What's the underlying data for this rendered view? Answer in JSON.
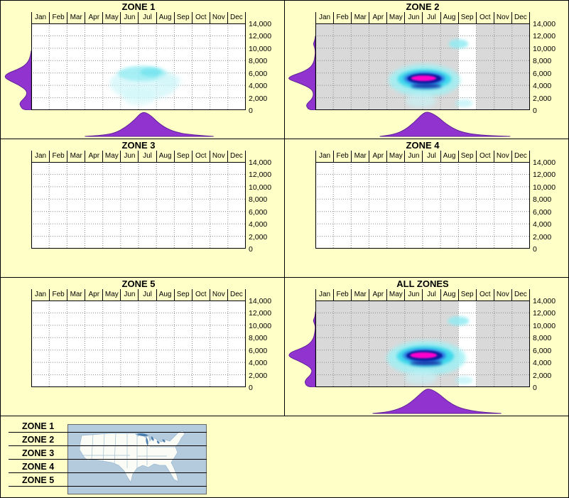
{
  "page": {
    "background": "#FFFFC8",
    "description": "Elevation vs month observation-density plots for five zones plus all zones combined, with a US zone map legend"
  },
  "axes": {
    "months": [
      "Jan",
      "Feb",
      "Mar",
      "Apr",
      "May",
      "Jun",
      "Jul",
      "Aug",
      "Sep",
      "Oct",
      "Nov",
      "Dec"
    ],
    "y_tick_labels": [
      "14,000",
      "12,000",
      "10,000",
      "8,000",
      "6,000",
      "4,000",
      "2,000",
      "0"
    ],
    "y_min": 0,
    "y_max": 14000,
    "y_step": 2000,
    "y_unit": "ft",
    "x_unit": "month"
  },
  "colors": {
    "page_bg": "#FFFFC8",
    "plot_bg": "#FFFFFF",
    "shaded_bg": "#D9D9D9",
    "grid": "#8A8A8A",
    "frame": "#000000",
    "density_fill": "#9133CE",
    "density_stroke": "#61229B",
    "map_water": "#B3CBDD",
    "map_land": "#FCFCF6",
    "map_border": "#666666",
    "map_state_line": "#9FBCD2",
    "map_lake": "#4D7FAE"
  },
  "chart_data": [
    {
      "type": "heatmap",
      "title": "ZONE 1",
      "x_unit": "month",
      "y_unit": "ft",
      "y_range": [
        0,
        14000
      ],
      "peak_month": 6.2,
      "peak_elevation_ft": 5500,
      "shaded_month_ranges": [],
      "blobs": [
        {
          "month": 6.3,
          "elev": 4300,
          "rx": 1.9,
          "ry": 2700,
          "color": "#C4F4F8",
          "opacity": 0.6,
          "blur": 3
        },
        {
          "month": 6.2,
          "elev": 5900,
          "rx": 1.35,
          "ry": 1200,
          "color": "#8FEBF2",
          "opacity": 0.7,
          "blur": 2
        },
        {
          "month": 6.7,
          "elev": 6100,
          "rx": 0.6,
          "ry": 700,
          "color": "#5FE0EC",
          "opacity": 0.6,
          "blur": 2
        },
        {
          "month": 6.0,
          "elev": 2200,
          "rx": 0.9,
          "ry": 1500,
          "color": "#D2F7FA",
          "opacity": 0.55,
          "blur": 3
        },
        {
          "month": 7.7,
          "elev": 4800,
          "rx": 0.7,
          "ry": 1000,
          "color": "#CFF6F9",
          "opacity": 0.5,
          "blur": 3
        }
      ],
      "left_density": [
        [
          0,
          0.28
        ],
        [
          600,
          0.4
        ],
        [
          1200,
          0.43
        ],
        [
          1900,
          0.26
        ],
        [
          2600,
          0.15
        ],
        [
          3300,
          0.2
        ],
        [
          4100,
          0.48
        ],
        [
          4700,
          0.78
        ],
        [
          5300,
          1.0
        ],
        [
          5900,
          0.9
        ],
        [
          6500,
          0.55
        ],
        [
          7100,
          0.27
        ],
        [
          7900,
          0.1
        ],
        [
          8800,
          0.03
        ],
        [
          9600,
          0
        ]
      ],
      "bottom_density": [
        [
          3.0,
          0
        ],
        [
          4.0,
          0.05
        ],
        [
          4.7,
          0.14
        ],
        [
          5.3,
          0.38
        ],
        [
          5.8,
          0.68
        ],
        [
          6.2,
          1.0
        ],
        [
          6.6,
          0.9
        ],
        [
          7.1,
          0.55
        ],
        [
          7.6,
          0.3
        ],
        [
          8.3,
          0.13
        ],
        [
          9.2,
          0.05
        ],
        [
          10.2,
          0
        ]
      ]
    },
    {
      "type": "heatmap",
      "title": "ZONE 2",
      "x_unit": "month",
      "y_unit": "ft",
      "y_range": [
        0,
        14000
      ],
      "peak_month": 6.1,
      "peak_elevation_ft": 5100,
      "shaded_month_ranges": [
        [
          0,
          8
        ],
        [
          9,
          12
        ]
      ],
      "blobs": [
        {
          "month": 6.1,
          "elev": 4800,
          "rx": 2.0,
          "ry": 2600,
          "color": "#9FF0F5",
          "opacity": 0.85,
          "blur": 3
        },
        {
          "month": 5.9,
          "elev": 1500,
          "rx": 0.85,
          "ry": 1100,
          "color": "#C4F4F8",
          "opacity": 0.6,
          "blur": 3
        },
        {
          "month": 6.1,
          "elev": 5000,
          "rx": 1.5,
          "ry": 1600,
          "color": "#35D8EC",
          "opacity": 0.9,
          "blur": 2
        },
        {
          "month": 6.1,
          "elev": 5100,
          "rx": 1.15,
          "ry": 1050,
          "color": "#2B6FE0",
          "opacity": 0.95,
          "blur": 2
        },
        {
          "month": 6.1,
          "elev": 5100,
          "rx": 0.95,
          "ry": 800,
          "color": "#0A1F9E",
          "opacity": 1,
          "blur": 1
        },
        {
          "month": 6.2,
          "elev": 3900,
          "rx": 0.85,
          "ry": 380,
          "color": "#0A1F9E",
          "opacity": 0.85,
          "blur": 2
        },
        {
          "month": 6.05,
          "elev": 5150,
          "rx": 0.7,
          "ry": 450,
          "color": "#FF00CC",
          "opacity": 1,
          "blur": 1
        },
        {
          "month": 8.0,
          "elev": 10700,
          "rx": 0.55,
          "ry": 750,
          "color": "#8FEBF2",
          "opacity": 0.85,
          "blur": 2
        },
        {
          "month": 8.3,
          "elev": 1100,
          "rx": 0.5,
          "ry": 650,
          "color": "#AFF0F5",
          "opacity": 0.6,
          "blur": 2
        }
      ],
      "left_density": [
        [
          0,
          0.22
        ],
        [
          600,
          0.34
        ],
        [
          1100,
          0.3
        ],
        [
          1800,
          0.12
        ],
        [
          2700,
          0.06
        ],
        [
          3500,
          0.16
        ],
        [
          4300,
          0.56
        ],
        [
          4900,
          0.95
        ],
        [
          5200,
          1.0
        ],
        [
          5600,
          0.85
        ],
        [
          6200,
          0.45
        ],
        [
          6900,
          0.18
        ],
        [
          7700,
          0.06
        ],
        [
          8600,
          0.02
        ],
        [
          9400,
          0
        ],
        [
          10200,
          0.03
        ],
        [
          10700,
          0.08
        ],
        [
          11300,
          0.02
        ],
        [
          12000,
          0
        ]
      ],
      "bottom_density": [
        [
          3.6,
          0
        ],
        [
          4.4,
          0.08
        ],
        [
          5.0,
          0.26
        ],
        [
          5.5,
          0.55
        ],
        [
          6.0,
          0.92
        ],
        [
          6.3,
          1.0
        ],
        [
          6.8,
          0.82
        ],
        [
          7.3,
          0.5
        ],
        [
          7.9,
          0.25
        ],
        [
          8.5,
          0.12
        ],
        [
          9.3,
          0.05
        ],
        [
          10.1,
          0.02
        ],
        [
          10.9,
          0
        ]
      ]
    },
    {
      "type": "heatmap",
      "title": "ZONE 3",
      "x_unit": "month",
      "y_unit": "ft",
      "y_range": [
        0,
        14000
      ],
      "shaded_month_ranges": [],
      "blobs": [],
      "left_density": [],
      "bottom_density": []
    },
    {
      "type": "heatmap",
      "title": "ZONE 4",
      "x_unit": "month",
      "y_unit": "ft",
      "y_range": [
        0,
        14000
      ],
      "shaded_month_ranges": [],
      "blobs": [],
      "left_density": [],
      "bottom_density": []
    },
    {
      "type": "heatmap",
      "title": "ZONE 5",
      "x_unit": "month",
      "y_unit": "ft",
      "y_range": [
        0,
        14000
      ],
      "shaded_month_ranges": [],
      "blobs": [],
      "left_density": [],
      "bottom_density": []
    },
    {
      "type": "heatmap",
      "title": "ALL ZONES",
      "x_unit": "month",
      "y_unit": "ft",
      "y_range": [
        0,
        14000
      ],
      "peak_month": 6.1,
      "peak_elevation_ft": 5100,
      "shaded_month_ranges": [
        [
          0,
          8
        ],
        [
          9,
          12
        ]
      ],
      "blobs": [
        {
          "month": 6.2,
          "elev": 4700,
          "rx": 2.2,
          "ry": 2800,
          "color": "#9FF0F5",
          "opacity": 0.85,
          "blur": 3
        },
        {
          "month": 5.9,
          "elev": 1500,
          "rx": 0.9,
          "ry": 1100,
          "color": "#C4F4F8",
          "opacity": 0.6,
          "blur": 3
        },
        {
          "month": 6.15,
          "elev": 5000,
          "rx": 1.6,
          "ry": 1700,
          "color": "#35D8EC",
          "opacity": 0.9,
          "blur": 2
        },
        {
          "month": 6.1,
          "elev": 5100,
          "rx": 1.2,
          "ry": 1100,
          "color": "#2B6FE0",
          "opacity": 0.95,
          "blur": 2
        },
        {
          "month": 6.1,
          "elev": 5100,
          "rx": 1.0,
          "ry": 850,
          "color": "#0A1F9E",
          "opacity": 1,
          "blur": 1
        },
        {
          "month": 6.2,
          "elev": 3900,
          "rx": 0.9,
          "ry": 380,
          "color": "#0A1F9E",
          "opacity": 0.85,
          "blur": 2
        },
        {
          "month": 6.05,
          "elev": 5150,
          "rx": 0.75,
          "ry": 480,
          "color": "#FF00CC",
          "opacity": 1,
          "blur": 1
        },
        {
          "month": 8.0,
          "elev": 10700,
          "rx": 0.6,
          "ry": 750,
          "color": "#8FEBF2",
          "opacity": 0.85,
          "blur": 2
        },
        {
          "month": 8.3,
          "elev": 1100,
          "rx": 0.5,
          "ry": 650,
          "color": "#AFF0F5",
          "opacity": 0.6,
          "blur": 2
        }
      ],
      "left_density": [
        [
          0,
          0.28
        ],
        [
          700,
          0.4
        ],
        [
          1300,
          0.35
        ],
        [
          2100,
          0.15
        ],
        [
          3000,
          0.12
        ],
        [
          4000,
          0.5
        ],
        [
          4800,
          0.92
        ],
        [
          5200,
          1.0
        ],
        [
          5700,
          0.88
        ],
        [
          6300,
          0.5
        ],
        [
          7000,
          0.22
        ],
        [
          7800,
          0.08
        ],
        [
          8800,
          0.02
        ],
        [
          9800,
          0
        ],
        [
          10300,
          0.04
        ],
        [
          10800,
          0.08
        ],
        [
          11300,
          0.02
        ],
        [
          12200,
          0
        ]
      ],
      "bottom_density": [
        [
          3.2,
          0
        ],
        [
          4.2,
          0.07
        ],
        [
          5.0,
          0.28
        ],
        [
          5.6,
          0.6
        ],
        [
          6.1,
          0.95
        ],
        [
          6.4,
          1.0
        ],
        [
          6.9,
          0.8
        ],
        [
          7.4,
          0.48
        ],
        [
          8.0,
          0.24
        ],
        [
          8.7,
          0.11
        ],
        [
          9.5,
          0.04
        ],
        [
          10.4,
          0
        ]
      ]
    }
  ],
  "legend": {
    "items": [
      "ZONE 1",
      "ZONE 2",
      "ZONE 3",
      "ZONE 4",
      "ZONE 5"
    ]
  }
}
